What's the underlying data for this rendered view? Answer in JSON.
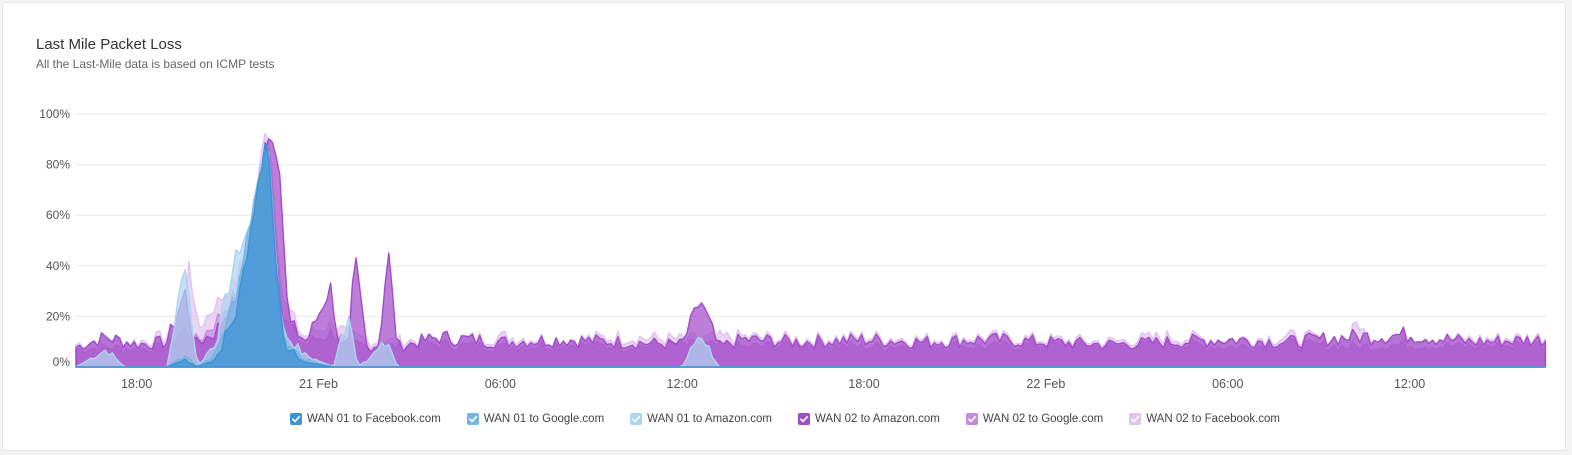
{
  "card": {
    "title": "Last Mile Packet Loss",
    "subtitle": "All the Last-Mile data is based on ICMP tests"
  },
  "legend": [
    {
      "label": "WAN 01 to Facebook.com",
      "color": "#3d93d4",
      "checked": true,
      "icon": "checkbox-checked-icon"
    },
    {
      "label": "WAN 01 to Google.com",
      "color": "#74b5e3",
      "checked": true,
      "icon": "checkbox-checked-icon"
    },
    {
      "label": "WAN 01 to Amazon.com",
      "color": "#aed6f0",
      "checked": true,
      "icon": "checkbox-checked-icon"
    },
    {
      "label": "WAN 02 to Amazon.com",
      "color": "#a24cc9",
      "checked": true,
      "icon": "checkbox-checked-icon"
    },
    {
      "label": "WAN 02 to Google.com",
      "color": "#c88ae0",
      "checked": true,
      "icon": "checkbox-checked-icon"
    },
    {
      "label": "WAN 02 to Facebook.com",
      "color": "#e2c3f0",
      "checked": true,
      "icon": "checkbox-checked-icon"
    }
  ],
  "chart_data": {
    "type": "area",
    "title": "Last Mile Packet Loss",
    "subtitle": "All the Last-Mile data is based on ICMP tests",
    "x_ticks": [
      "18:00",
      "21 Feb",
      "06:00",
      "12:00",
      "18:00",
      "22 Feb",
      "06:00",
      "12:00"
    ],
    "x_range_hours": [
      16,
      64.5
    ],
    "x_tick_hours": [
      18,
      24,
      30,
      36,
      42,
      48,
      54,
      60
    ],
    "y_ticks": [
      "0%",
      "20%",
      "40%",
      "60%",
      "80%",
      "100%"
    ],
    "ylim": [
      0,
      100
    ],
    "grid": true,
    "legend_position": "bottom",
    "series": [
      {
        "name": "WAN 02 to Facebook.com",
        "color": "#e2c3f0",
        "points": [
          [
            16,
            9
          ],
          [
            17,
            11
          ],
          [
            18,
            10
          ],
          [
            19,
            12
          ],
          [
            19.6,
            22
          ],
          [
            19.7,
            46
          ],
          [
            20,
            15
          ],
          [
            20.6,
            25
          ],
          [
            21.3,
            35
          ],
          [
            21.8,
            55
          ],
          [
            22.3,
            102
          ],
          [
            22.8,
            28
          ],
          [
            23.5,
            12
          ],
          [
            24.5,
            18
          ],
          [
            25,
            12
          ],
          [
            26,
            10
          ],
          [
            28,
            11
          ],
          [
            30,
            12
          ],
          [
            32,
            11
          ],
          [
            34,
            12
          ],
          [
            36,
            11
          ],
          [
            38,
            12
          ],
          [
            40,
            11
          ],
          [
            42,
            12
          ],
          [
            44,
            11
          ],
          [
            46,
            12
          ],
          [
            48,
            11
          ],
          [
            50,
            10
          ],
          [
            52,
            12
          ],
          [
            54,
            11
          ],
          [
            56,
            12
          ],
          [
            58,
            11
          ],
          [
            58.3,
            19
          ],
          [
            58.6,
            11
          ],
          [
            60,
            12
          ],
          [
            62,
            11
          ],
          [
            64.5,
            12
          ]
        ]
      },
      {
        "name": "WAN 02 to Google.com",
        "color": "#c88ae0",
        "points": [
          [
            16,
            7
          ],
          [
            17,
            8
          ],
          [
            18,
            7
          ],
          [
            19,
            8
          ],
          [
            19.6,
            15
          ],
          [
            20,
            10
          ],
          [
            20.6,
            18
          ],
          [
            21.3,
            30
          ],
          [
            21.8,
            50
          ],
          [
            22.3,
            97
          ],
          [
            22.8,
            20
          ],
          [
            23.5,
            9
          ],
          [
            24.5,
            14
          ],
          [
            25,
            9
          ],
          [
            26,
            8
          ],
          [
            28,
            9
          ],
          [
            30,
            8
          ],
          [
            32,
            9
          ],
          [
            34,
            8
          ],
          [
            36,
            9
          ],
          [
            38,
            8
          ],
          [
            40,
            9
          ],
          [
            42,
            8
          ],
          [
            44,
            9
          ],
          [
            46,
            8
          ],
          [
            48,
            9
          ],
          [
            50,
            8
          ],
          [
            52,
            9
          ],
          [
            54,
            8
          ],
          [
            56,
            9
          ],
          [
            58,
            8
          ],
          [
            60,
            9
          ],
          [
            62,
            8
          ],
          [
            64.5,
            9
          ]
        ]
      },
      {
        "name": "WAN 02 to Amazon.com",
        "color": "#a24cc9",
        "points": [
          [
            16,
            8
          ],
          [
            17,
            12
          ],
          [
            18,
            9
          ],
          [
            19,
            10
          ],
          [
            19.6,
            30
          ],
          [
            19.9,
            9
          ],
          [
            20.6,
            14
          ],
          [
            21.3,
            28
          ],
          [
            21.8,
            55
          ],
          [
            22.3,
            95
          ],
          [
            22.7,
            85
          ],
          [
            23,
            18
          ],
          [
            23.6,
            10
          ],
          [
            24.4,
            32
          ],
          [
            24.7,
            8
          ],
          [
            25,
            9
          ],
          [
            25.2,
            45
          ],
          [
            25.6,
            8
          ],
          [
            26,
            9
          ],
          [
            26.3,
            47
          ],
          [
            26.6,
            8
          ],
          [
            28,
            12
          ],
          [
            30,
            10
          ],
          [
            32,
            11
          ],
          [
            34,
            10
          ],
          [
            36,
            9
          ],
          [
            36.6,
            27
          ],
          [
            37.2,
            8
          ],
          [
            38,
            11
          ],
          [
            40,
            10
          ],
          [
            42,
            11
          ],
          [
            44,
            10
          ],
          [
            46,
            11
          ],
          [
            48,
            10
          ],
          [
            50,
            9
          ],
          [
            52,
            10
          ],
          [
            54,
            11
          ],
          [
            56,
            10
          ],
          [
            58,
            12
          ],
          [
            60,
            13
          ],
          [
            62,
            10
          ],
          [
            64.5,
            11
          ]
        ]
      },
      {
        "name": "WAN 01 to Amazon.com",
        "color": "#aed6f0",
        "points": [
          [
            16,
            0
          ],
          [
            17,
            7
          ],
          [
            17.6,
            0
          ],
          [
            19,
            0
          ],
          [
            19.6,
            42
          ],
          [
            20,
            0
          ],
          [
            20.6,
            10
          ],
          [
            21.3,
            45
          ],
          [
            21.8,
            58
          ],
          [
            22.3,
            91
          ],
          [
            22.8,
            15
          ],
          [
            23.5,
            5
          ],
          [
            24.5,
            0
          ],
          [
            25,
            22
          ],
          [
            25.3,
            0
          ],
          [
            26.3,
            10
          ],
          [
            26.6,
            0
          ],
          [
            28,
            0
          ],
          [
            36,
            0
          ],
          [
            36.6,
            14
          ],
          [
            37.2,
            0
          ],
          [
            38,
            0
          ],
          [
            64.5,
            0
          ]
        ]
      },
      {
        "name": "WAN 01 to Google.com",
        "color": "#74b5e3",
        "points": [
          [
            16,
            0
          ],
          [
            19,
            0
          ],
          [
            19.6,
            5
          ],
          [
            20,
            0
          ],
          [
            20.6,
            5
          ],
          [
            21.3,
            30
          ],
          [
            21.8,
            62
          ],
          [
            22.3,
            93
          ],
          [
            22.8,
            12
          ],
          [
            23.5,
            3
          ],
          [
            24.5,
            0
          ],
          [
            64.5,
            0
          ]
        ]
      },
      {
        "name": "WAN 01 to Facebook.com",
        "color": "#3d93d4",
        "points": [
          [
            16,
            0
          ],
          [
            19,
            0
          ],
          [
            19.6,
            3
          ],
          [
            20,
            0
          ],
          [
            20.6,
            3
          ],
          [
            21.3,
            22
          ],
          [
            21.8,
            58
          ],
          [
            22.3,
            94
          ],
          [
            22.8,
            10
          ],
          [
            23.5,
            2
          ],
          [
            24.5,
            0
          ],
          [
            64.5,
            0
          ]
        ]
      }
    ]
  }
}
